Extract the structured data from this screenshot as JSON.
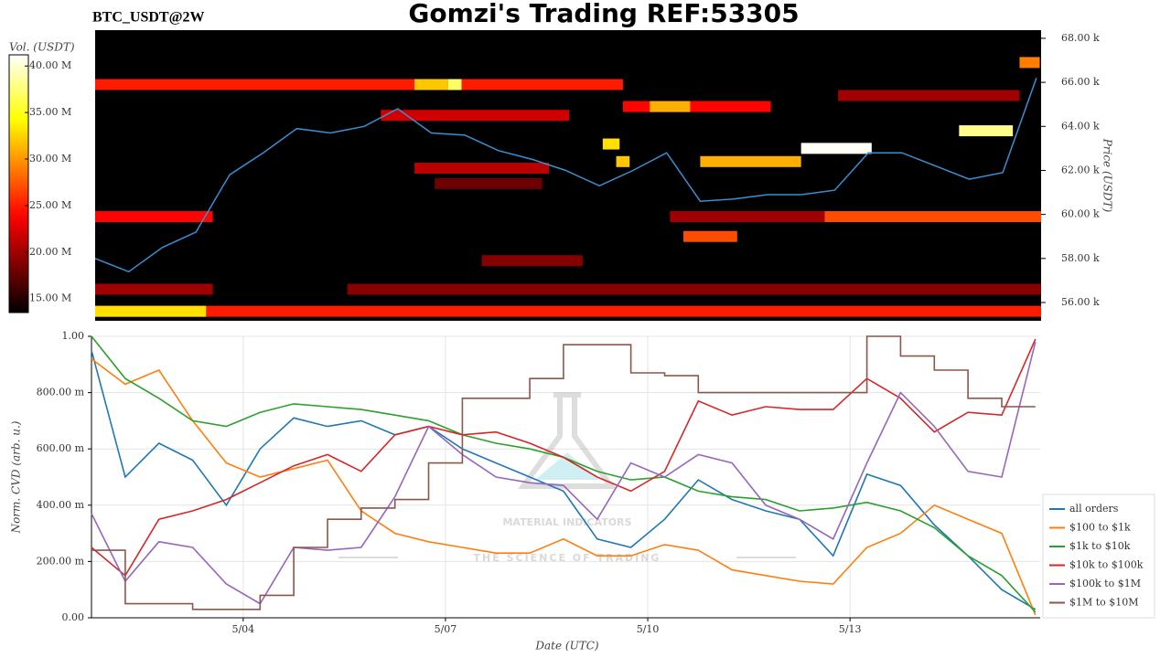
{
  "chart_data": [
    {
      "type": "heatmap",
      "title": "Gomzi's Trading REF:53305",
      "subtitle": "BTC_USDT@2W",
      "colorbar_label": "Vol. (USDT)",
      "y_label": "Price (USDT)",
      "colormap": "hot",
      "background": "#000000",
      "xlim": [
        1.75,
        15.82
      ],
      "ylim": [
        55170,
        68370
      ],
      "yticks": [
        {
          "value": 56000,
          "label": "56.00 k"
        },
        {
          "value": 58000,
          "label": "58.00 k"
        },
        {
          "value": 60000,
          "label": "60.00 k"
        },
        {
          "value": 62000,
          "label": "62.00 k"
        },
        {
          "value": 64000,
          "label": "64.00 k"
        },
        {
          "value": 66000,
          "label": "66.00 k"
        },
        {
          "value": 68000,
          "label": "68.00 k"
        }
      ],
      "zlim": [
        13500000,
        41200000
      ],
      "zticks": [
        {
          "value": 15000000,
          "label": "15.00 M"
        },
        {
          "value": 20000000,
          "label": "20.00 M"
        },
        {
          "value": 25000000,
          "label": "25.00 M"
        },
        {
          "value": 30000000,
          "label": "30.00 M"
        },
        {
          "value": 35000000,
          "label": "35.00 M"
        },
        {
          "value": 40000000,
          "label": "40.00 M"
        }
      ],
      "bands": [
        {
          "price": 55600,
          "start": 1.75,
          "end": 15.82,
          "volume": 25000000
        },
        {
          "price": 55600,
          "start": 1.75,
          "end": 3.4,
          "volume": 33000000
        },
        {
          "price": 56600,
          "start": 1.75,
          "end": 3.5,
          "volume": 20000000
        },
        {
          "price": 56600,
          "start": 5.5,
          "end": 15.82,
          "volume": 19000000
        },
        {
          "price": 57900,
          "start": 7.5,
          "end": 9.0,
          "volume": 19000000
        },
        {
          "price": 59000,
          "start": 10.5,
          "end": 11.3,
          "volume": 27000000
        },
        {
          "price": 59900,
          "start": 1.75,
          "end": 3.5,
          "volume": 24000000
        },
        {
          "price": 59900,
          "start": 10.3,
          "end": 12.6,
          "volume": 20000000
        },
        {
          "price": 59900,
          "start": 12.6,
          "end": 15.82,
          "volume": 27000000
        },
        {
          "price": 61400,
          "start": 6.8,
          "end": 8.4,
          "volume": 18000000
        },
        {
          "price": 62100,
          "start": 6.5,
          "end": 8.5,
          "volume": 21000000
        },
        {
          "price": 62400,
          "start": 10.75,
          "end": 12.25,
          "volume": 31000000
        },
        {
          "price": 62400,
          "start": 9.5,
          "end": 9.7,
          "volume": 32000000
        },
        {
          "price": 63000,
          "start": 12.25,
          "end": 13.3,
          "volume": 41000000
        },
        {
          "price": 63200,
          "start": 9.3,
          "end": 9.55,
          "volume": 33000000
        },
        {
          "price": 63800,
          "start": 14.6,
          "end": 15.4,
          "volume": 38000000
        },
        {
          "price": 64500,
          "start": 6.0,
          "end": 8.8,
          "volume": 22000000
        },
        {
          "price": 64900,
          "start": 9.6,
          "end": 11.8,
          "volume": 24000000
        },
        {
          "price": 64900,
          "start": 10.0,
          "end": 10.6,
          "volume": 31000000
        },
        {
          "price": 65400,
          "start": 12.8,
          "end": 15.5,
          "volume": 20000000
        },
        {
          "price": 65900,
          "start": 1.75,
          "end": 9.6,
          "volume": 25000000
        },
        {
          "price": 65900,
          "start": 6.5,
          "end": 7.0,
          "volume": 32000000
        },
        {
          "price": 65900,
          "start": 7.0,
          "end": 7.2,
          "volume": 37000000
        },
        {
          "price": 66900,
          "start": 15.5,
          "end": 15.8,
          "volume": 29000000
        }
      ],
      "x": [
        1.75,
        2.25,
        2.75,
        3.25,
        3.75,
        4.25,
        4.75,
        5.25,
        5.75,
        6.25,
        6.75,
        7.25,
        7.75,
        8.25,
        8.75,
        9.25,
        9.75,
        10.25,
        10.75,
        11.25,
        11.75,
        12.25,
        12.75,
        13.25,
        13.75,
        14.25,
        14.75,
        15.25,
        15.75
      ],
      "price_line": {
        "color": "#3a8fd0",
        "values": [
          58000,
          57400,
          58500,
          59200,
          61800,
          62800,
          63900,
          63700,
          64000,
          64800,
          63700,
          63600,
          62900,
          62500,
          62000,
          61300,
          62000,
          62800,
          60600,
          60700,
          60900,
          60900,
          61100,
          62800,
          62800,
          62200,
          61600,
          61900,
          66200
        ]
      }
    },
    {
      "type": "line",
      "y_label": "Norm. CVD (arb. u.)",
      "x_label": "Date (UTC)",
      "grid": true,
      "legend": "lower right",
      "watermark": {
        "title": "MATERIAL INDICATORS",
        "subtitle": "THE SCIENCE OF TRADING"
      },
      "xlim": [
        1.75,
        15.82
      ],
      "xticks": [
        {
          "value": 4,
          "label": "5/04"
        },
        {
          "value": 7,
          "label": "5/07"
        },
        {
          "value": 10,
          "label": "5/10"
        },
        {
          "value": 13,
          "label": "5/13"
        }
      ],
      "ylim": [
        0,
        1
      ],
      "yticks": [
        {
          "value": 0,
          "label": "0.00"
        },
        {
          "value": 0.2,
          "label": "200.00 m"
        },
        {
          "value": 0.4,
          "label": "400.00 m"
        },
        {
          "value": 0.6,
          "label": "600.00 m"
        },
        {
          "value": 0.8,
          "label": "800.00 m"
        },
        {
          "value": 1,
          "label": "1.00"
        }
      ],
      "x": [
        1.75,
        2.25,
        2.75,
        3.25,
        3.75,
        4.25,
        4.75,
        5.25,
        5.75,
        6.25,
        6.75,
        7.25,
        7.75,
        8.25,
        8.75,
        9.25,
        9.75,
        10.25,
        10.75,
        11.25,
        11.75,
        12.25,
        12.75,
        13.25,
        13.75,
        14.25,
        14.75,
        15.25,
        15.75
      ],
      "series": [
        {
          "name": "all orders",
          "color": "#1f77b4",
          "values": [
            0.95,
            0.5,
            0.62,
            0.56,
            0.4,
            0.6,
            0.71,
            0.68,
            0.7,
            0.65,
            0.68,
            0.6,
            0.55,
            0.5,
            0.45,
            0.28,
            0.25,
            0.35,
            0.49,
            0.42,
            0.38,
            0.35,
            0.22,
            0.51,
            0.47,
            0.33,
            0.22,
            0.1,
            0.03
          ]
        },
        {
          "name": "$100 to $1k",
          "color": "#ff7f0e",
          "values": [
            0.92,
            0.83,
            0.88,
            0.7,
            0.55,
            0.5,
            0.53,
            0.56,
            0.38,
            0.3,
            0.27,
            0.25,
            0.23,
            0.23,
            0.28,
            0.22,
            0.22,
            0.26,
            0.24,
            0.17,
            0.15,
            0.13,
            0.12,
            0.25,
            0.3,
            0.4,
            0.35,
            0.3,
            0.01
          ]
        },
        {
          "name": "$1k to $10k",
          "color": "#2ca02c",
          "values": [
            1.0,
            0.85,
            0.78,
            0.7,
            0.68,
            0.73,
            0.76,
            0.75,
            0.74,
            0.72,
            0.7,
            0.65,
            0.62,
            0.6,
            0.57,
            0.52,
            0.49,
            0.5,
            0.45,
            0.43,
            0.42,
            0.38,
            0.39,
            0.41,
            0.38,
            0.32,
            0.22,
            0.15,
            0.02
          ]
        },
        {
          "name": "$10k to $100k",
          "color": "#d62728",
          "values": [
            0.25,
            0.15,
            0.35,
            0.38,
            0.42,
            0.48,
            0.54,
            0.58,
            0.52,
            0.65,
            0.68,
            0.65,
            0.66,
            0.62,
            0.57,
            0.5,
            0.45,
            0.52,
            0.77,
            0.72,
            0.75,
            0.74,
            0.74,
            0.85,
            0.78,
            0.66,
            0.73,
            0.72,
            0.99
          ]
        },
        {
          "name": "$100k to $1M",
          "color": "#9467bd",
          "values": [
            0.37,
            0.13,
            0.27,
            0.25,
            0.12,
            0.05,
            0.25,
            0.24,
            0.25,
            0.43,
            0.68,
            0.58,
            0.5,
            0.48,
            0.47,
            0.35,
            0.55,
            0.5,
            0.58,
            0.55,
            0.4,
            0.35,
            0.28,
            0.55,
            0.8,
            0.68,
            0.52,
            0.5,
            0.98
          ]
        },
        {
          "name": "$1M to $10M",
          "color": "#8c564b",
          "step": true,
          "values": [
            0.24,
            0.05,
            0.05,
            0.03,
            0.03,
            0.08,
            0.25,
            0.35,
            0.39,
            0.42,
            0.55,
            0.78,
            0.78,
            0.85,
            0.97,
            0.97,
            0.87,
            0.86,
            0.8,
            0.8,
            0.8,
            0.8,
            0.8,
            1.0,
            0.93,
            0.88,
            0.78,
            0.75,
            0.75
          ]
        }
      ]
    }
  ]
}
